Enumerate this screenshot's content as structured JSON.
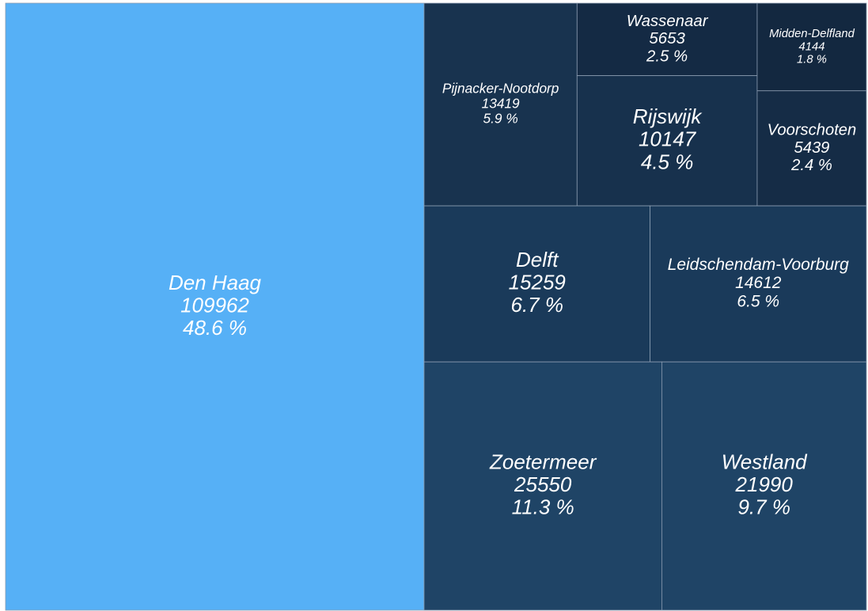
{
  "chart_data": {
    "type": "treemap",
    "categories": [
      "Den Haag",
      "Zoetermeer",
      "Westland",
      "Delft",
      "Leidschendam-Voorburg",
      "Pijnacker-Nootdorp",
      "Rijswijk",
      "Wassenaar",
      "Voorschoten",
      "Midden-Delfland"
    ],
    "values": [
      109962,
      25550,
      21990,
      15259,
      14612,
      13419,
      10147,
      5653,
      5439,
      4144
    ],
    "percent_labels": [
      "48.6 %",
      "11.3 %",
      "9.7 %",
      "6.7 %",
      "6.5 %",
      "5.9 %",
      "4.5 %",
      "2.5 %",
      "2.4 %",
      "1.8 %"
    ],
    "colors": [
      "#56b0f6",
      "#1f4466",
      "#1f4466",
      "#1a3a5a",
      "#1a3a5a",
      "#18334f",
      "#17314d",
      "#142a44",
      "#152c46",
      "#132840"
    ]
  }
}
